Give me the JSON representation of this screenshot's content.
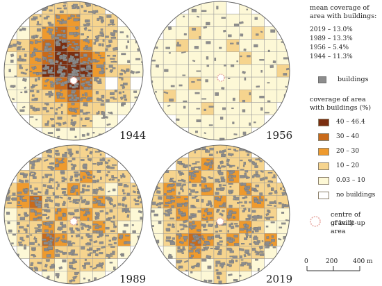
{
  "panels": [
    {
      "year": "1944"
    },
    {
      "year": "1956"
    },
    {
      "year": "1989"
    },
    {
      "year": "2019"
    }
  ],
  "legend": {
    "mean_title_1": "mean coverage of",
    "mean_title_2": "area with buildings:",
    "stats": [
      "2019 – 13.0%",
      "1989 – 13.3%",
      "1956 – 5.4%",
      "1944 – 11.3%"
    ],
    "buildings_label": "buildings",
    "coverage_title_1": "coverage of area",
    "coverage_title_2": "with buildings (%)",
    "classes": [
      {
        "label": "40 – 46.4",
        "color": "#7b2e10"
      },
      {
        "label": "30 – 40",
        "color": "#c96a1a"
      },
      {
        "label": "20 – 30",
        "color": "#ee9a2e"
      },
      {
        "label": "10 – 20",
        "color": "#f6d48e"
      },
      {
        "label": "0.03 – 10",
        "color": "#fdf8d6"
      },
      {
        "label": "no buildings",
        "color": "#ffffff"
      }
    ],
    "centre_label_1": "centre of gravity",
    "centre_label_2": "of built-up area",
    "scale": {
      "ticks": [
        "0",
        "200",
        "400 m"
      ]
    }
  },
  "colors": {
    "building": "#8d8d8d",
    "grid": "#9a9a9a",
    "outline": "#666666"
  }
}
